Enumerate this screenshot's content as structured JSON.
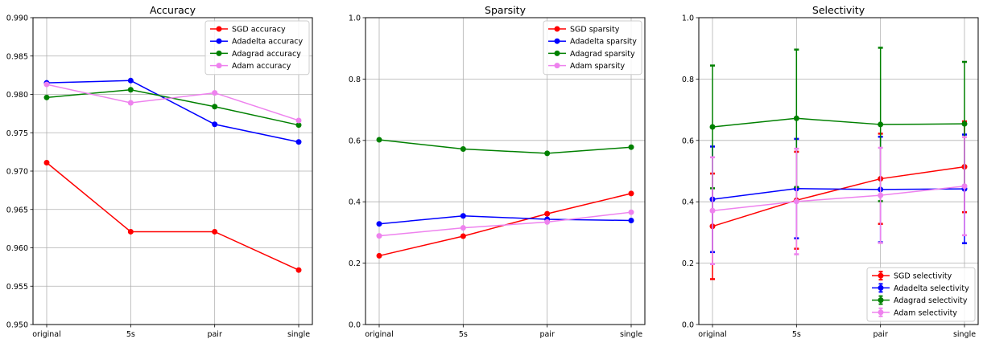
{
  "chart_data": [
    {
      "type": "line",
      "title": "Accuracy",
      "xlabel": "",
      "ylabel": "",
      "categories": [
        "original",
        "5s",
        "pair",
        "single"
      ],
      "ylim": [
        0.95,
        0.99
      ],
      "yticks": [
        "0.950",
        "0.955",
        "0.960",
        "0.965",
        "0.970",
        "0.975",
        "0.980",
        "0.985",
        "0.990"
      ],
      "grid": true,
      "legend_position": "top-right",
      "series": [
        {
          "name": "SGD accuracy",
          "color": "#ff0000",
          "values": [
            0.9711,
            0.9621,
            0.9621,
            0.9571
          ]
        },
        {
          "name": "Adadelta accuracy",
          "color": "#0000ff",
          "values": [
            0.9815,
            0.9818,
            0.9761,
            0.9738
          ]
        },
        {
          "name": "Adagrad accuracy",
          "color": "#008000",
          "values": [
            0.9796,
            0.9806,
            0.9784,
            0.976
          ]
        },
        {
          "name": "Adam accuracy",
          "color": "#ee82ee",
          "values": [
            0.9813,
            0.9789,
            0.9802,
            0.9766
          ]
        }
      ]
    },
    {
      "type": "line",
      "title": "Sparsity",
      "xlabel": "",
      "ylabel": "",
      "categories": [
        "original",
        "5s",
        "pair",
        "single"
      ],
      "ylim": [
        0.0,
        1.0
      ],
      "yticks": [
        "0.0",
        "0.2",
        "0.4",
        "0.6",
        "0.8",
        "1.0"
      ],
      "grid": true,
      "legend_position": "top-right",
      "series": [
        {
          "name": "SGD sparsity",
          "color": "#ff0000",
          "values": [
            0.224,
            0.288,
            0.361,
            0.427
          ]
        },
        {
          "name": "Adadelta sparsity",
          "color": "#0000ff",
          "values": [
            0.328,
            0.354,
            0.343,
            0.339
          ]
        },
        {
          "name": "Adagrad sparsity",
          "color": "#008000",
          "values": [
            0.602,
            0.572,
            0.558,
            0.578
          ]
        },
        {
          "name": "Adam sparsity",
          "color": "#ee82ee",
          "values": [
            0.289,
            0.315,
            0.334,
            0.366
          ]
        }
      ]
    },
    {
      "type": "line",
      "title": "Selectivity",
      "xlabel": "",
      "ylabel": "",
      "categories": [
        "original",
        "5s",
        "pair",
        "single"
      ],
      "ylim": [
        0.0,
        1.0
      ],
      "yticks": [
        "0.0",
        "0.2",
        "0.4",
        "0.6",
        "0.8",
        "1.0"
      ],
      "grid": true,
      "legend_position": "bottom-right",
      "error_bars": true,
      "series": [
        {
          "name": "SGD selectivity",
          "color": "#ff0000",
          "values": [
            0.32,
            0.405,
            0.475,
            0.514
          ],
          "errors": [
            0.172,
            0.158,
            0.147,
            0.148
          ]
        },
        {
          "name": "Adadelta selectivity",
          "color": "#0000ff",
          "values": [
            0.408,
            0.443,
            0.44,
            0.442
          ],
          "errors": [
            0.172,
            0.162,
            0.172,
            0.177
          ]
        },
        {
          "name": "Adagrad selectivity",
          "color": "#008000",
          "values": [
            0.644,
            0.672,
            0.652,
            0.654
          ],
          "errors": [
            0.2,
            0.224,
            0.25,
            0.202
          ]
        },
        {
          "name": "Adam selectivity",
          "color": "#ee82ee",
          "values": [
            0.371,
            0.401,
            0.421,
            0.451
          ],
          "errors": [
            0.174,
            0.172,
            0.155,
            0.16
          ]
        }
      ]
    }
  ]
}
